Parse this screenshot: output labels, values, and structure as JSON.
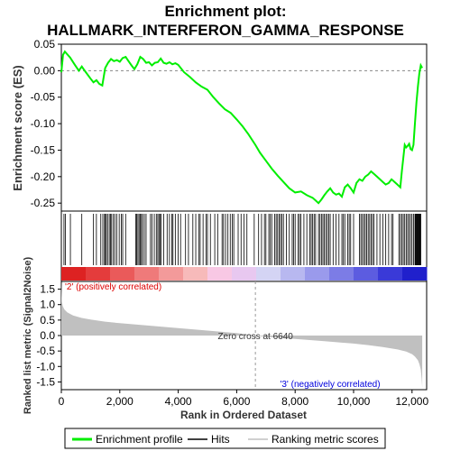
{
  "chart_data": {
    "type": "line",
    "title": "Enrichment plot:\nHALLMARK_INTERFERON_GAMMA_RESPONSE",
    "xlabel": "Rank in Ordered Dataset",
    "es_panel": {
      "ylabel": "Enrichment score (ES)",
      "ylim": [
        -0.265,
        0.05
      ],
      "yticks": [
        "0.05",
        "0.00",
        "-0.05",
        "-0.10",
        "-0.15",
        "-0.20",
        "-0.25"
      ],
      "ytick_values": [
        0.05,
        0.0,
        -0.05,
        -0.1,
        -0.15,
        -0.2,
        -0.25
      ],
      "line_color": "#00ee00",
      "series": [
        {
          "name": "Enrichment profile",
          "x": [
            0,
            60,
            120,
            300,
            450,
            600,
            700,
            800,
            1000,
            1100,
            1200,
            1300,
            1400,
            1500,
            1600,
            1700,
            1800,
            1900,
            2000,
            2100,
            2200,
            2300,
            2400,
            2500,
            2600,
            2700,
            2800,
            2900,
            3000,
            3100,
            3200,
            3300,
            3400,
            3500,
            3600,
            3700,
            3800,
            3900,
            4000,
            4200,
            4400,
            4600,
            4800,
            5000,
            5200,
            5400,
            5600,
            5800,
            6000,
            6200,
            6400,
            6640,
            6800,
            7000,
            7200,
            7400,
            7600,
            7800,
            8000,
            8200,
            8400,
            8600,
            8700,
            8800,
            8900,
            9000,
            9100,
            9200,
            9300,
            9400,
            9500,
            9600,
            9700,
            9800,
            9900,
            10000,
            10100,
            10200,
            10300,
            10400,
            10500,
            10600,
            10700,
            10800,
            10900,
            11000,
            11100,
            11200,
            11300,
            11400,
            11500,
            11600,
            11650,
            11700,
            11750,
            11800,
            11850,
            11900,
            11950,
            12000,
            12050,
            12100,
            12150,
            12200,
            12250,
            12300,
            12350
          ],
          "y": [
            -0.003,
            0.03,
            0.036,
            0.025,
            0.012,
            0.0,
            0.008,
            0.0,
            -0.015,
            -0.022,
            -0.018,
            -0.025,
            -0.028,
            0.005,
            0.015,
            0.022,
            0.018,
            0.02,
            0.017,
            0.024,
            0.026,
            0.018,
            0.01,
            0.003,
            0.012,
            0.026,
            0.022,
            0.015,
            0.016,
            0.01,
            0.015,
            0.016,
            0.023,
            0.015,
            0.013,
            0.016,
            0.012,
            0.014,
            0.011,
            -0.003,
            -0.012,
            -0.022,
            -0.03,
            -0.036,
            -0.05,
            -0.062,
            -0.073,
            -0.08,
            -0.092,
            -0.105,
            -0.12,
            -0.14,
            -0.155,
            -0.17,
            -0.185,
            -0.198,
            -0.21,
            -0.222,
            -0.23,
            -0.228,
            -0.235,
            -0.24,
            -0.245,
            -0.25,
            -0.243,
            -0.235,
            -0.228,
            -0.222,
            -0.23,
            -0.234,
            -0.232,
            -0.238,
            -0.22,
            -0.215,
            -0.222,
            -0.23,
            -0.212,
            -0.205,
            -0.208,
            -0.2,
            -0.196,
            -0.19,
            -0.195,
            -0.2,
            -0.205,
            -0.21,
            -0.215,
            -0.212,
            -0.205,
            -0.21,
            -0.215,
            -0.22,
            -0.19,
            -0.165,
            -0.14,
            -0.145,
            -0.142,
            -0.138,
            -0.148,
            -0.15,
            -0.14,
            -0.1,
            -0.06,
            -0.03,
            -0.005,
            0.01,
            0.005
          ]
        }
      ]
    },
    "hits_panel": {
      "hit_ranks": [
        90,
        140,
        310,
        700,
        1100,
        1200,
        1350,
        1420,
        1480,
        1500,
        1540,
        1580,
        1640,
        1680,
        1720,
        1780,
        1830,
        1900,
        1980,
        2050,
        2100,
        2200,
        2550,
        2580,
        2620,
        2660,
        2700,
        2740,
        2780,
        2840,
        2900,
        3050,
        3100,
        3180,
        3250,
        3300,
        3340,
        3380,
        3420,
        3500,
        3620,
        3700,
        3780,
        3820,
        3900,
        4000,
        4080,
        4250,
        4350,
        4500,
        4600,
        4700,
        4750,
        4850,
        4950,
        5000,
        5100,
        5250,
        5350,
        5500,
        5550,
        5620,
        5700,
        5780,
        5850,
        5900,
        6050,
        6150,
        6250,
        6350,
        6600,
        6750,
        6850,
        6950,
        7000,
        7100,
        7150,
        7200,
        7300,
        7350,
        7400,
        7450,
        7500,
        7550,
        7600,
        7700,
        7800,
        7900,
        7950,
        8000,
        8100,
        8150,
        8200,
        8300,
        8400,
        8500,
        8550,
        8600,
        8650,
        8700,
        8800,
        8850,
        8900,
        8950,
        9000,
        9050,
        9100,
        9150,
        9200,
        9300,
        9400,
        9500,
        9600,
        9650,
        9700,
        9800,
        9850,
        9900,
        10000,
        10200,
        10250,
        10300,
        10350,
        10400,
        10450,
        10500,
        10550,
        10600,
        10650,
        10700,
        10800,
        10900,
        11000,
        11100,
        11200,
        11300,
        11350,
        11550,
        11600,
        11650,
        11700,
        11750,
        11800,
        11850,
        11900,
        11950,
        12000,
        12050,
        12100,
        12120,
        12140,
        12160,
        12180,
        12200,
        12220,
        12240,
        12260,
        12280,
        12300
      ],
      "bar_colors": [
        "#dd2222",
        "#e43c3c",
        "#ea5a5a",
        "#ef7a7a",
        "#f39a9a",
        "#f7baba",
        "#f8c8e4",
        "#e8c8f0",
        "#d4d4f4",
        "#b8b8f0",
        "#9a9aec",
        "#7c7ce6",
        "#5c5ce0",
        "#3a3ad8",
        "#2020cc"
      ]
    },
    "metric_panel": {
      "ylabel": "Ranked list metric (Signal2Noise)",
      "ylim": [
        -1.75,
        1.75
      ],
      "yticks": [
        "1.5",
        "1.0",
        "0.5",
        "0.0",
        "-0.5",
        "-1.0",
        "-1.5"
      ],
      "ytick_values": [
        1.5,
        1.0,
        0.5,
        0.0,
        -0.5,
        -1.0,
        -1.5
      ],
      "fill_color": "#c0c0c0",
      "x": [
        0,
        20,
        50,
        100,
        200,
        400,
        700,
        1000,
        1500,
        2000,
        3000,
        4000,
        5000,
        6000,
        6640,
        7000,
        8000,
        9000,
        10000,
        10500,
        11000,
        11500,
        11800,
        12000,
        12100,
        12200,
        12250,
        12300,
        12330,
        12350
      ],
      "y": [
        1.75,
        1.1,
        0.95,
        0.85,
        0.75,
        0.65,
        0.57,
        0.52,
        0.45,
        0.4,
        0.32,
        0.24,
        0.16,
        0.08,
        0.0,
        -0.04,
        -0.11,
        -0.18,
        -0.26,
        -0.31,
        -0.37,
        -0.45,
        -0.52,
        -0.6,
        -0.68,
        -0.8,
        -0.92,
        -1.1,
        -1.4,
        -1.7
      ],
      "zero_cross_label": "Zero cross at 6640",
      "zero_cross_rank": 6640,
      "pos_label": "'2' (positively correlated)",
      "neg_label": "'3' (negatively correlated)",
      "pos_color": "#dd0000",
      "neg_color": "#0000dd"
    },
    "xlim": [
      0,
      12500
    ],
    "xticks": [
      "0",
      "2,000",
      "4,000",
      "6,000",
      "8,000",
      "10,000",
      "12,000"
    ],
    "xtick_values": [
      0,
      2000,
      4000,
      6000,
      8000,
      10000,
      12000
    ],
    "legend": {
      "placement": "bottom",
      "items": [
        {
          "label": "Enrichment profile",
          "color": "#00ee00",
          "kind": "line"
        },
        {
          "label": "Hits",
          "color": "#000000",
          "kind": "line"
        },
        {
          "label": "Ranking metric scores",
          "color": "#c0c0c0",
          "kind": "line"
        }
      ]
    }
  }
}
